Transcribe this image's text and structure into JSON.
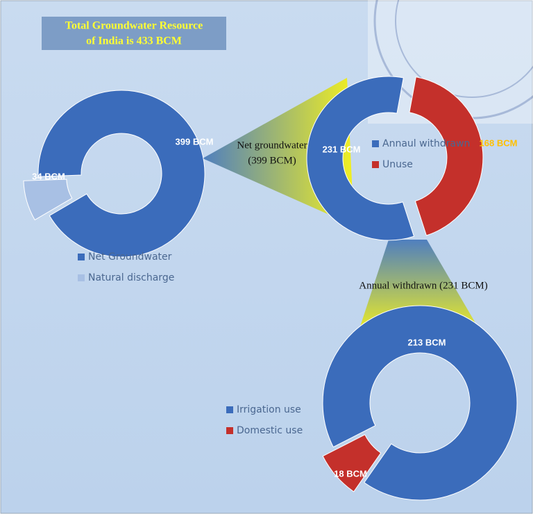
{
  "chart_data": [
    {
      "type": "donut",
      "title": [
        "Total Groundwater Resource",
        "of India is 433 BCM"
      ],
      "categories": [
        "Net Groundwater",
        "Natural discharge"
      ],
      "values": [
        399,
        34
      ],
      "value_labels": [
        "399 BCM",
        "34 BCM"
      ],
      "colors": [
        "#3b6cbb",
        "#a8c0e4"
      ]
    },
    {
      "type": "donut",
      "annotation": [
        "Net groundwater",
        "(399 BCM)"
      ],
      "categories": [
        "Annaul withdrawn",
        "Unuse"
      ],
      "values": [
        231,
        168
      ],
      "value_labels": [
        "231 BCM",
        "168 BCM"
      ],
      "colors": [
        "#3b6cbb",
        "#c4302b"
      ]
    },
    {
      "type": "donut",
      "annotation": [
        "Annual withdrawn (231 BCM)"
      ],
      "categories": [
        "Irrigation use",
        "Domestic use"
      ],
      "values": [
        213,
        18
      ],
      "value_labels": [
        "213 BCM",
        "18 BCM"
      ],
      "colors": [
        "#3b6cbb",
        "#c4302b"
      ]
    }
  ]
}
